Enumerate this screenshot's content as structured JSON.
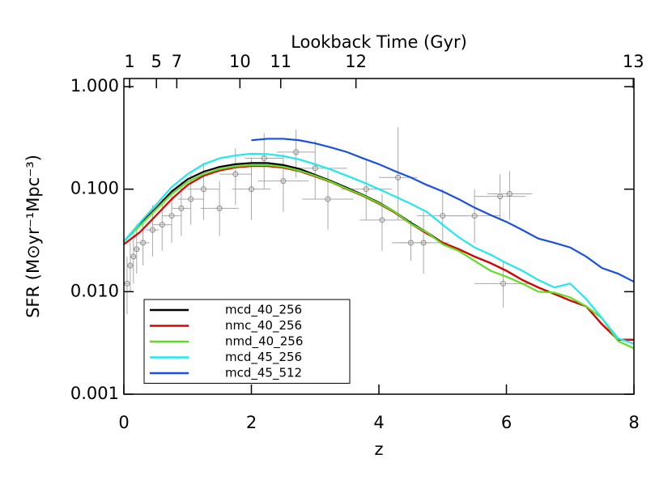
{
  "chart_data": {
    "type": "line",
    "xlabel": "z",
    "ylabel": "SFR (M⊙yr⁻¹Mpc⁻³)",
    "top_axis": {
      "label": "Lookback Time (Gyr)",
      "ticks": [
        {
          "value": 0.09,
          "label": "1"
        },
        {
          "value": 0.51,
          "label": "5"
        },
        {
          "value": 0.83,
          "label": "7"
        },
        {
          "value": 1.82,
          "label": "10"
        },
        {
          "value": 2.46,
          "label": "11"
        },
        {
          "value": 3.64,
          "label": "12"
        },
        {
          "value": 7.99,
          "label": "13"
        }
      ]
    },
    "log_y": true,
    "xlim": [
      0,
      8
    ],
    "xticks": [
      0,
      2,
      4,
      6,
      8
    ],
    "ylim": [
      0.001,
      1.2
    ],
    "yticks": [
      {
        "value": 1,
        "label": "1.000"
      },
      {
        "value": 0.1,
        "label": "0.100"
      },
      {
        "value": 0.01,
        "label": "0.010"
      },
      {
        "value": 0.001,
        "label": "0.001"
      }
    ],
    "x": [
      0,
      0.25,
      0.5,
      0.75,
      1,
      1.25,
      1.5,
      1.75,
      2,
      2.25,
      2.5,
      2.75,
      3,
      3.25,
      3.5,
      3.75,
      4,
      4.25,
      4.5,
      4.75,
      5,
      5.25,
      5.5,
      5.75,
      6,
      6.25,
      6.5,
      6.75,
      7,
      7.25,
      7.5,
      7.75,
      8
    ],
    "series": [
      {
        "name": "mcd_40_256",
        "color": "#000000",
        "values": [
          0.031,
          0.045,
          0.065,
          0.095,
          0.125,
          0.148,
          0.165,
          0.175,
          0.18,
          0.18,
          0.172,
          0.158,
          0.138,
          0.12,
          0.103,
          0.088,
          0.074,
          0.06,
          0.047,
          0.038,
          0.03,
          0.026,
          0.022,
          0.019,
          0.016,
          0.013,
          0.011,
          0.0095,
          0.0082,
          0.0072,
          0.0048,
          0.0034,
          0.0034
        ]
      },
      {
        "name": "nmc_40_256",
        "color": "#e00000",
        "values": [
          0.029,
          0.038,
          0.055,
          0.08,
          0.11,
          0.135,
          0.152,
          0.163,
          0.168,
          0.168,
          0.162,
          0.15,
          0.133,
          0.117,
          0.1,
          0.086,
          0.072,
          0.059,
          0.046,
          0.037,
          0.03,
          0.026,
          0.022,
          0.019,
          0.016,
          0.013,
          0.011,
          0.0095,
          0.0082,
          0.0072,
          0.0048,
          0.0034,
          0.0034
        ]
      },
      {
        "name": "nmd_40_256",
        "color": "#5ee020",
        "values": [
          0.031,
          0.044,
          0.063,
          0.09,
          0.118,
          0.14,
          0.157,
          0.167,
          0.172,
          0.172,
          0.165,
          0.152,
          0.135,
          0.118,
          0.101,
          0.087,
          0.073,
          0.06,
          0.046,
          0.038,
          0.029,
          0.025,
          0.02,
          0.016,
          0.014,
          0.012,
          0.01,
          0.0098,
          0.0088,
          0.0072,
          0.0055,
          0.0033,
          0.0028
        ]
      },
      {
        "name": "mcd_45_256",
        "color": "#20e8f0",
        "values": [
          0.031,
          0.047,
          0.07,
          0.105,
          0.14,
          0.175,
          0.2,
          0.213,
          0.222,
          0.22,
          0.21,
          0.195,
          0.175,
          0.155,
          0.135,
          0.117,
          0.1,
          0.085,
          0.072,
          0.06,
          0.045,
          0.034,
          0.027,
          0.023,
          0.019,
          0.016,
          0.013,
          0.011,
          0.012,
          0.0085,
          0.0055,
          0.0035,
          0.0031
        ]
      },
      {
        "name": "mcd_45_512",
        "color": "#1850e0",
        "values": [
          null,
          null,
          null,
          null,
          null,
          null,
          null,
          null,
          0.3,
          0.31,
          0.31,
          0.3,
          0.28,
          0.255,
          0.23,
          0.2,
          0.175,
          0.15,
          0.13,
          0.11,
          0.095,
          0.08,
          0.066,
          0.056,
          0.048,
          0.04,
          0.033,
          0.03,
          0.027,
          0.022,
          0.017,
          0.015,
          0.0125
        ]
      }
    ],
    "observations": {
      "color": "#a8a8a8",
      "x": [
        0.05,
        0.1,
        0.15,
        0.2,
        0.3,
        0.45,
        0.6,
        0.75,
        0.9,
        1.05,
        1.25,
        1.5,
        1.75,
        2.0,
        2.2,
        2.5,
        2.7,
        3.0,
        3.2,
        3.8,
        4.05,
        4.3,
        4.5,
        4.7,
        5.0,
        5.5,
        5.95,
        5.9,
        6.05
      ],
      "y": [
        0.012,
        0.018,
        0.022,
        0.026,
        0.03,
        0.04,
        0.045,
        0.055,
        0.065,
        0.08,
        0.1,
        0.065,
        0.14,
        0.1,
        0.2,
        0.12,
        0.23,
        0.16,
        0.08,
        0.1,
        0.05,
        0.13,
        0.03,
        0.03,
        0.055,
        0.055,
        0.012,
        0.085,
        0.09
      ],
      "x_low": [
        0.0,
        0.05,
        0.1,
        0.15,
        0.2,
        0.35,
        0.45,
        0.6,
        0.75,
        0.85,
        1.0,
        1.2,
        1.5,
        1.7,
        1.9,
        2.1,
        2.4,
        2.5,
        2.8,
        3.4,
        3.7,
        4.0,
        4.2,
        4.3,
        4.6,
        5.1,
        5.5,
        5.5,
        5.7
      ],
      "x_high": [
        0.1,
        0.15,
        0.2,
        0.25,
        0.4,
        0.55,
        0.75,
        0.9,
        1.05,
        1.25,
        1.5,
        1.8,
        2.0,
        2.3,
        2.5,
        2.9,
        3.0,
        3.5,
        3.6,
        4.2,
        4.4,
        4.6,
        4.8,
        5.1,
        5.4,
        5.9,
        6.4,
        6.3,
        6.4
      ],
      "y_low": [
        0.006,
        0.01,
        0.012,
        0.015,
        0.018,
        0.022,
        0.025,
        0.03,
        0.035,
        0.045,
        0.05,
        0.035,
        0.07,
        0.05,
        0.1,
        0.06,
        0.13,
        0.08,
        0.04,
        0.05,
        0.025,
        0.05,
        0.02,
        0.015,
        0.03,
        0.03,
        0.007,
        0.05,
        0.05
      ],
      "y_high": [
        0.022,
        0.03,
        0.04,
        0.045,
        0.05,
        0.07,
        0.08,
        0.1,
        0.12,
        0.14,
        0.18,
        0.12,
        0.25,
        0.2,
        0.35,
        0.22,
        0.38,
        0.3,
        0.15,
        0.19,
        0.09,
        0.4,
        0.05,
        0.06,
        0.1,
        0.1,
        0.02,
        0.14,
        0.15
      ]
    }
  }
}
